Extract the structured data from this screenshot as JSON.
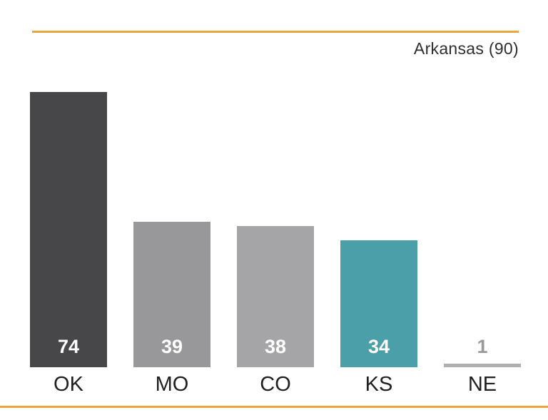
{
  "accent_color": "#e9a53e",
  "chart_data": {
    "type": "bar",
    "title": "Arkansas (90)",
    "categories": [
      "OK",
      "MO",
      "CO",
      "KS",
      "NE"
    ],
    "values": [
      74,
      39,
      38,
      34,
      1
    ],
    "bar_colors": [
      "#474749",
      "#98989a",
      "#a5a5a7",
      "#4a9fa8",
      "#afafb1"
    ],
    "value_label_colors": [
      "#ffffff",
      "#ffffff",
      "#ffffff",
      "#ffffff",
      "#9a9a9c"
    ],
    "xlabel": "",
    "ylabel": "",
    "ylim": [
      0,
      90
    ],
    "grid": false,
    "legend": false,
    "annotation": "value labels inside bar bottoms; reference value 90 aligns with top accent rule"
  }
}
